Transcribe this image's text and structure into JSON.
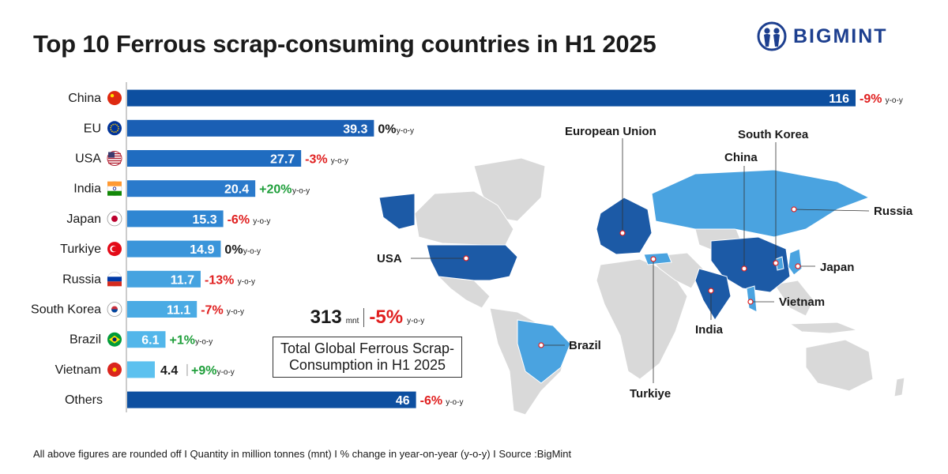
{
  "header": {
    "title": "Top 10 Ferrous scrap-consuming countries in H1 2025",
    "brand": "BIGMINT"
  },
  "chart_data": {
    "type": "bar",
    "orientation": "horizontal",
    "title": "Top 10 Ferrous scrap-consuming countries in H1 2025",
    "unit": "mnt",
    "categories": [
      "China",
      "EU",
      "USA",
      "India",
      "Japan",
      "Turkiye",
      "Russia",
      "South Korea",
      "Brazil",
      "Vietnam",
      "Others"
    ],
    "values": [
      116,
      39.3,
      27.7,
      20.4,
      15.3,
      14.9,
      11.7,
      11.1,
      6.1,
      4.4,
      46
    ],
    "value_labels": [
      "116",
      "39.3",
      "27.7",
      "20.4",
      "15.3",
      "14.9",
      "11.7",
      "11.1",
      "6.1",
      "4.4",
      "46"
    ],
    "yoy_change": [
      "-9%",
      "0%",
      "-3%",
      "+20%",
      "-6%",
      "0%",
      "-13%",
      "-7%",
      "+1%",
      "+9%",
      "-6%"
    ],
    "yoy_suffix": "y-o-y",
    "colors": [
      "#0d4fa0",
      "#1a5fb4",
      "#1f6cc0",
      "#2a7acb",
      "#2f86d2",
      "#3a95da",
      "#45a3e0",
      "#4aabe4",
      "#52b6ea",
      "#5cc1ef",
      "#0d4fa0"
    ]
  },
  "totals": {
    "value": "313",
    "unit": "mnt",
    "change": "-5%",
    "yoy": "y-o-y",
    "caption_line1": "Total Global Ferrous Scrap-",
    "caption_line2": "Consumption in H1 2025"
  },
  "map": {
    "labels": [
      "European Union",
      "South Korea",
      "China",
      "Russia",
      "USA",
      "Japan",
      "Vietnam",
      "India",
      "Brazil",
      "Turkiye"
    ]
  },
  "footer": {
    "text": "All above figures are rounded off  I  Quantity in million tonnes (mnt)  I  % change in year-on-year (y-o-y)  I  Source :BigMint"
  },
  "colors": {
    "negative": "#e02020",
    "positive": "#1e9e3a",
    "neutral": "#1a1a1a",
    "land": "#d9d9d9",
    "dark_blue": "#1c5aa6",
    "light_blue": "#4aa3e0"
  }
}
